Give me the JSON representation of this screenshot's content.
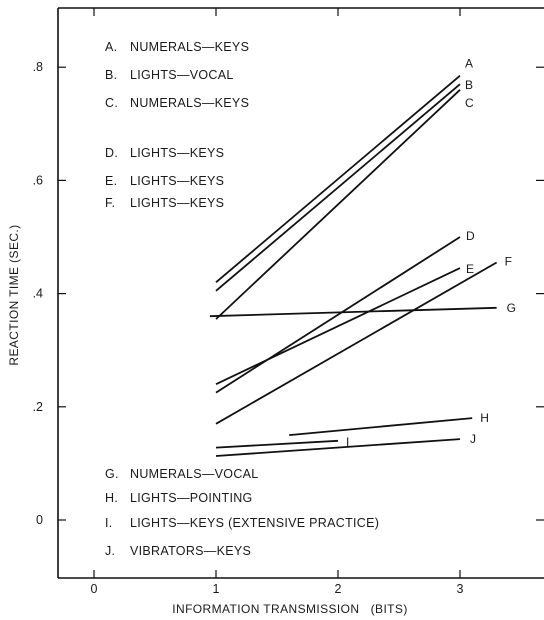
{
  "chart_data": {
    "type": "line",
    "xlabel": "INFORMATION TRANSMISSION   (BITS)",
    "ylabel": "REACTION TIME (SEC.)",
    "xlim": [
      -0.3,
      3.7
    ],
    "ylim": [
      -0.1,
      0.9
    ],
    "x_ticks": [
      "0",
      "1",
      "2",
      "3"
    ],
    "y_ticks": [
      "0",
      ".2",
      ".4",
      ".6",
      ".8"
    ],
    "grid": false,
    "legend_top": [
      {
        "letter": "A.",
        "text": "NUMERALS—KEYS"
      },
      {
        "letter": "B.",
        "text": "LIGHTS—VOCAL"
      },
      {
        "letter": "C.",
        "text": "NUMERALS—KEYS"
      },
      {
        "letter": "D.",
        "text": "LIGHTS—KEYS"
      },
      {
        "letter": "E.",
        "text": "LIGHTS—KEYS"
      },
      {
        "letter": "F.",
        "text": "LIGHTS—KEYS"
      }
    ],
    "legend_bottom": [
      {
        "letter": "G.",
        "text": "NUMERALS—VOCAL"
      },
      {
        "letter": "H.",
        "text": "LIGHTS—POINTING"
      },
      {
        "letter": "I.",
        "text": "LIGHTS—KEYS  (EXTENSIVE  PRACTICE)"
      },
      {
        "letter": "J.",
        "text": "VIBRATORS—KEYS"
      }
    ],
    "series": [
      {
        "name": "A",
        "x": [
          1.0,
          3.0
        ],
        "y": [
          0.42,
          0.785
        ]
      },
      {
        "name": "B",
        "x": [
          1.0,
          3.0
        ],
        "y": [
          0.405,
          0.77
        ]
      },
      {
        "name": "C",
        "x": [
          1.0,
          3.0
        ],
        "y": [
          0.355,
          0.76
        ]
      },
      {
        "name": "D",
        "x": [
          1.0,
          3.0
        ],
        "y": [
          0.225,
          0.5
        ]
      },
      {
        "name": "E",
        "x": [
          1.0,
          3.0
        ],
        "y": [
          0.24,
          0.445
        ]
      },
      {
        "name": "F",
        "x": [
          1.0,
          3.3
        ],
        "y": [
          0.17,
          0.455
        ]
      },
      {
        "name": "G",
        "x": [
          0.95,
          3.3
        ],
        "y": [
          0.36,
          0.375
        ]
      },
      {
        "name": "H",
        "x": [
          1.6,
          3.1
        ],
        "y": [
          0.15,
          0.18
        ]
      },
      {
        "name": "I",
        "x": [
          1.0,
          2.0
        ],
        "y": [
          0.128,
          0.14
        ]
      },
      {
        "name": "J",
        "x": [
          1.0,
          3.0
        ],
        "y": [
          0.113,
          0.143
        ]
      }
    ]
  }
}
